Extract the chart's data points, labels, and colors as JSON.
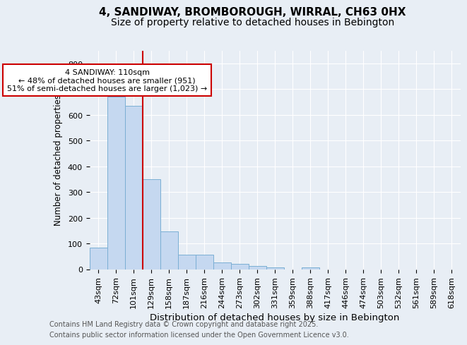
{
  "title_line1": "4, SANDIWAY, BROMBOROUGH, WIRRAL, CH63 0HX",
  "title_line2": "Size of property relative to detached houses in Bebington",
  "xlabel": "Distribution of detached houses by size in Bebington",
  "ylabel": "Number of detached properties",
  "categories": [
    "43sqm",
    "72sqm",
    "101sqm",
    "129sqm",
    "158sqm",
    "187sqm",
    "216sqm",
    "244sqm",
    "273sqm",
    "302sqm",
    "331sqm",
    "359sqm",
    "388sqm",
    "417sqm",
    "446sqm",
    "474sqm",
    "503sqm",
    "532sqm",
    "561sqm",
    "589sqm",
    "618sqm"
  ],
  "values": [
    83,
    670,
    635,
    350,
    148,
    57,
    57,
    25,
    20,
    13,
    8,
    0,
    7,
    0,
    0,
    0,
    0,
    0,
    0,
    0,
    0
  ],
  "bar_color": "#c5d8f0",
  "bar_edge_color": "#7bafd4",
  "vline_color": "#cc0000",
  "annotation_text1": "4 SANDIWAY: 110sqm",
  "annotation_text2": "← 48% of detached houses are smaller (951)",
  "annotation_text3": "51% of semi-detached houses are larger (1,023) →",
  "annotation_box_facecolor": "#ffffff",
  "annotation_box_edgecolor": "#cc0000",
  "ylim": [
    0,
    850
  ],
  "yticks": [
    0,
    100,
    200,
    300,
    400,
    500,
    600,
    700,
    800
  ],
  "background_color": "#e8eef5",
  "plot_bg_color": "#e8eef5",
  "grid_color": "#ffffff",
  "title_fontsize": 11,
  "subtitle_fontsize": 10,
  "tick_fontsize": 8,
  "xlabel_fontsize": 9.5,
  "ylabel_fontsize": 8.5,
  "annotation_fontsize": 8,
  "footer_fontsize": 7,
  "footer_line1": "Contains HM Land Registry data © Crown copyright and database right 2025.",
  "footer_line2": "Contains public sector information licensed under the Open Government Licence v3.0."
}
